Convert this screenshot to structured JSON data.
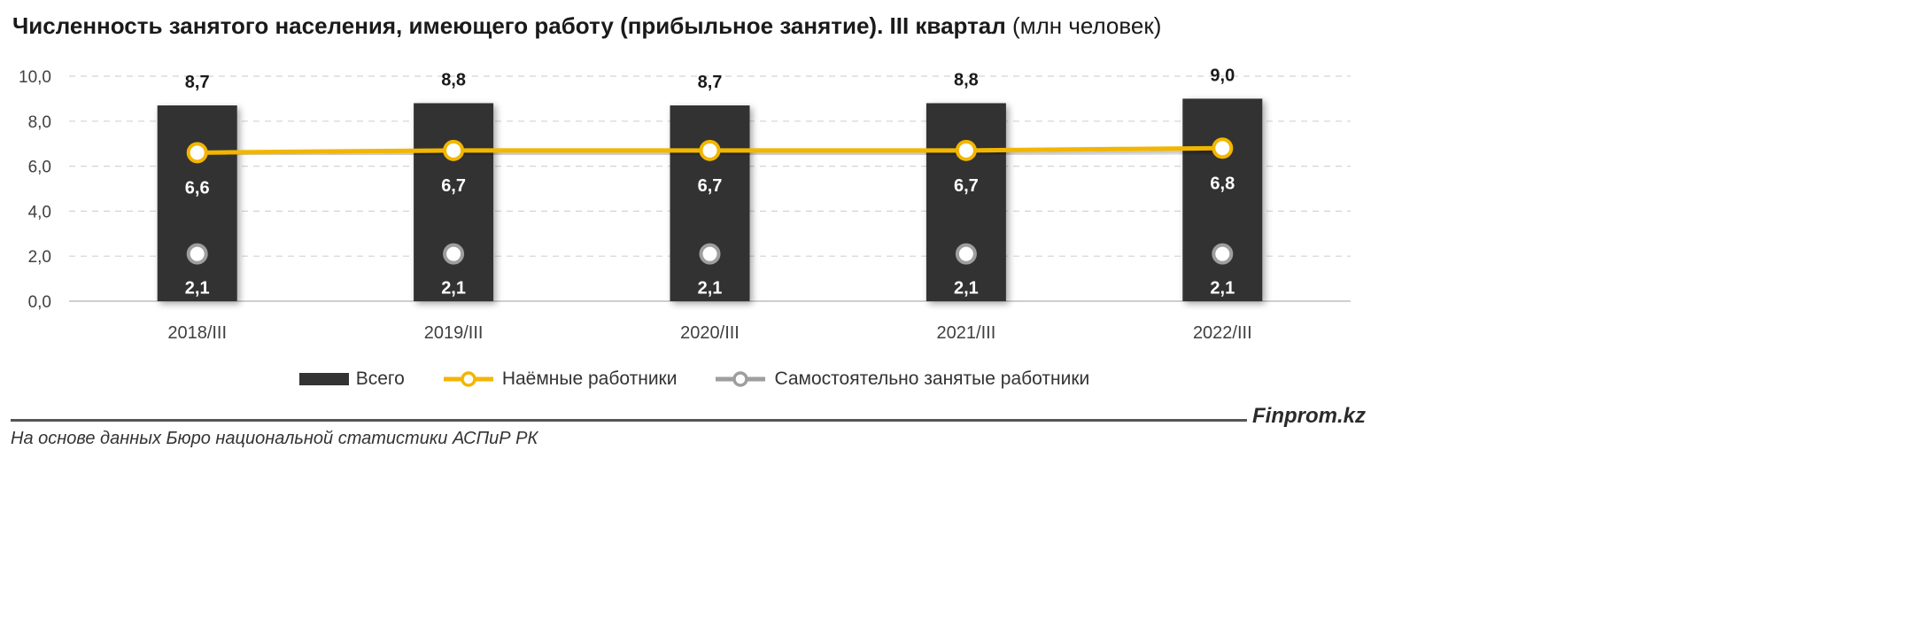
{
  "header": {
    "title_bold": "Численность занятого населения, имеющего работу (прибыльное занятие). III квартал",
    "title_unit": "(млн человек)"
  },
  "footer": {
    "brand": "Finprom.kz",
    "source": "На основе данных Бюро национальной статистики АСПиР РК"
  },
  "colors": {
    "bar": "#333333",
    "hired": "#f2b600",
    "self_employed": "#9e9e9e",
    "grid": "#d4d4d4"
  },
  "chart_data": {
    "type": "bar",
    "title": "Численность занятого населения, имеющего работу (прибыльное занятие). III квартал (млн человек)",
    "categories": [
      "2018/III",
      "2019/III",
      "2020/III",
      "2021/III",
      "2022/III"
    ],
    "ylim": [
      0,
      10
    ],
    "yticks": [
      "0,0",
      "2,0",
      "4,0",
      "6,0",
      "8,0",
      "10,0"
    ],
    "grid": true,
    "legend_position": "bottom",
    "series": [
      {
        "name": "Всего",
        "kind": "bar",
        "values": [
          8.7,
          8.8,
          8.7,
          8.8,
          9.0
        ],
        "labels": [
          "8,7",
          "8,8",
          "8,7",
          "8,8",
          "9,0"
        ]
      },
      {
        "name": "Наёмные работники",
        "kind": "line",
        "values": [
          6.6,
          6.7,
          6.7,
          6.7,
          6.8
        ],
        "labels": [
          "6,6",
          "6,7",
          "6,7",
          "6,7",
          "6,8"
        ]
      },
      {
        "name": "Самостоятельно занятые работники",
        "kind": "line",
        "values": [
          2.1,
          2.1,
          2.1,
          2.1,
          2.1
        ],
        "labels": [
          "2,1",
          "2,1",
          "2,1",
          "2,1",
          "2,1"
        ]
      }
    ]
  }
}
